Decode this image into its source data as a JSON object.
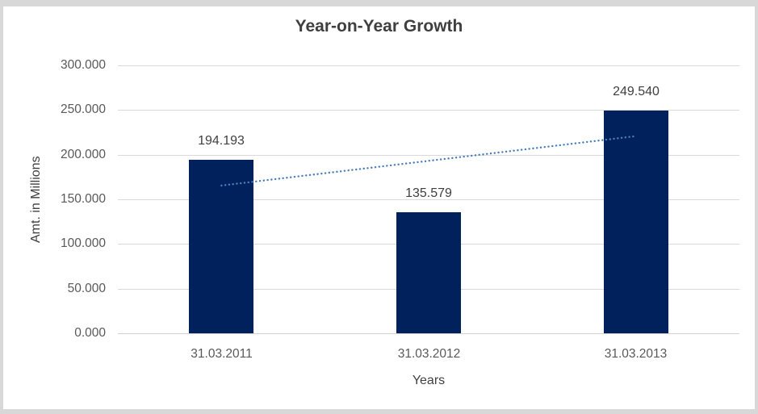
{
  "chart_data": {
    "type": "bar",
    "title": "Year-on-Year Growth",
    "xlabel": "Years",
    "ylabel": "Amt. in Millions",
    "categories": [
      "31.03.2011",
      "31.03.2012",
      "31.03.2013"
    ],
    "values": [
      194.193,
      135.579,
      249.54
    ],
    "data_labels": [
      "194.193",
      "135.579",
      "249.540"
    ],
    "ylim": [
      0,
      300
    ],
    "ytick_step": 50,
    "ytick_labels": [
      "0.000",
      "50.000",
      "100.000",
      "150.000",
      "200.000",
      "250.000",
      "300.000"
    ],
    "grid": true,
    "legend": "none",
    "trendline": {
      "type": "linear",
      "style": "dotted"
    },
    "colors": {
      "bar": "#01215c",
      "trendline": "#4a7ebb",
      "gridline": "#d9d9d9",
      "axis_line": "#d2d2d2",
      "title_text": "#3f3f3f",
      "tick_text": "#595959",
      "data_label_text": "#404040",
      "frame_border": "#d8d8d8",
      "background": "#ffffff"
    }
  }
}
